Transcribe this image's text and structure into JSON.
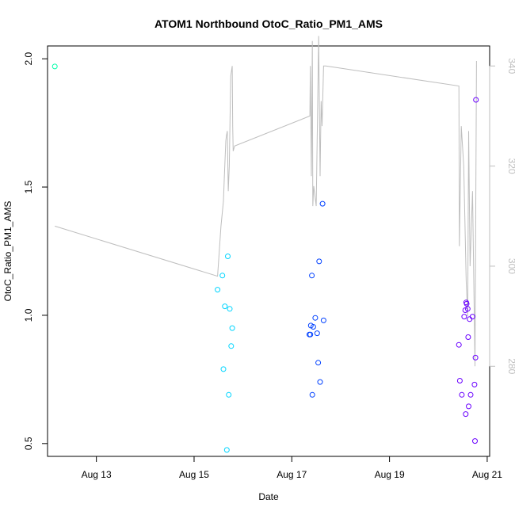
{
  "chart_data": {
    "type": "scatter",
    "title": "ATOM1 Northbound OtoC_Ratio_PM1_AMS",
    "xlabel": "Date",
    "ylabel": "OtoC_Ratio_PM1_AMS",
    "xlim": [
      12.0,
      21.05
    ],
    "ylim": [
      0.45,
      2.05
    ],
    "x_ticks": [
      {
        "value": 13,
        "label": "Aug 13"
      },
      {
        "value": 15,
        "label": "Aug 15"
      },
      {
        "value": 17,
        "label": "Aug 17"
      },
      {
        "value": 19,
        "label": "Aug 19"
      },
      {
        "value": 21,
        "label": "Aug 21"
      }
    ],
    "y_ticks": [
      {
        "value": 0.5,
        "label": "0.5"
      },
      {
        "value": 1.0,
        "label": "1.0"
      },
      {
        "value": 1.5,
        "label": "1.5"
      },
      {
        "value": 2.0,
        "label": "2.0"
      }
    ],
    "y2lim": [
      262,
      344
    ],
    "y2_ticks": [
      {
        "value": 280,
        "label": "280"
      },
      {
        "value": 300,
        "label": "300"
      },
      {
        "value": 320,
        "label": "320"
      },
      {
        "value": 340,
        "label": "340"
      }
    ],
    "secondary_line": {
      "color": "#bebebe",
      "x": [
        12.15,
        15.48,
        15.55,
        15.6,
        15.62,
        15.65,
        15.66,
        15.68,
        15.7,
        15.72,
        15.75,
        15.78,
        15.79,
        15.8,
        15.83,
        17.37,
        17.38,
        17.4,
        17.42,
        17.43,
        17.45,
        17.5,
        17.55,
        17.58,
        17.6,
        17.62,
        17.65,
        17.7,
        20.42,
        20.43,
        20.47,
        20.52,
        20.57,
        20.6,
        20.62,
        20.65,
        20.7,
        20.75,
        20.78
      ],
      "y": [
        308,
        298,
        308,
        313,
        318,
        325,
        326,
        327,
        315,
        320,
        338,
        340,
        328,
        323,
        324,
        330,
        340,
        318,
        345,
        312,
        316,
        312,
        346,
        318,
        333,
        328,
        340,
        340,
        336,
        304,
        328,
        320,
        297,
        290,
        327,
        300,
        315,
        280,
        341
      ]
    },
    "series": [
      {
        "name": "points",
        "points": [
          {
            "x": 12.15,
            "y": 1.97,
            "color": "#00ffaa"
          },
          {
            "x": 15.48,
            "y": 1.1,
            "color": "#00d5ff"
          },
          {
            "x": 15.58,
            "y": 1.155,
            "color": "#00d5ff"
          },
          {
            "x": 15.6,
            "y": 0.79,
            "color": "#00d5ff"
          },
          {
            "x": 15.63,
            "y": 1.035,
            "color": "#00d5ff"
          },
          {
            "x": 15.67,
            "y": 0.475,
            "color": "#00d5ff"
          },
          {
            "x": 15.69,
            "y": 1.23,
            "color": "#00d5ff"
          },
          {
            "x": 15.71,
            "y": 0.69,
            "color": "#00d5ff"
          },
          {
            "x": 15.73,
            "y": 1.025,
            "color": "#00d5ff"
          },
          {
            "x": 15.76,
            "y": 0.88,
            "color": "#00d5ff"
          },
          {
            "x": 15.78,
            "y": 0.95,
            "color": "#00d5ff"
          },
          {
            "x": 17.36,
            "y": 0.925,
            "color": "#0040ff"
          },
          {
            "x": 17.38,
            "y": 0.925,
            "color": "#0040ff"
          },
          {
            "x": 17.39,
            "y": 0.96,
            "color": "#0040ff"
          },
          {
            "x": 17.41,
            "y": 1.155,
            "color": "#0040ff"
          },
          {
            "x": 17.42,
            "y": 0.69,
            "color": "#0040ff"
          },
          {
            "x": 17.44,
            "y": 0.955,
            "color": "#0040ff"
          },
          {
            "x": 17.48,
            "y": 0.99,
            "color": "#0040ff"
          },
          {
            "x": 17.52,
            "y": 0.93,
            "color": "#0040ff"
          },
          {
            "x": 17.54,
            "y": 0.815,
            "color": "#0040ff"
          },
          {
            "x": 17.56,
            "y": 1.21,
            "color": "#0040ff"
          },
          {
            "x": 17.58,
            "y": 0.74,
            "color": "#0040ff"
          },
          {
            "x": 17.63,
            "y": 1.435,
            "color": "#0040ff"
          },
          {
            "x": 17.65,
            "y": 0.98,
            "color": "#0040ff"
          },
          {
            "x": 20.42,
            "y": 0.885,
            "color": "#6a00ff"
          },
          {
            "x": 20.44,
            "y": 0.745,
            "color": "#6a00ff"
          },
          {
            "x": 20.48,
            "y": 0.69,
            "color": "#6a00ff"
          },
          {
            "x": 20.53,
            "y": 0.995,
            "color": "#6a00ff"
          },
          {
            "x": 20.55,
            "y": 1.02,
            "color": "#6a00ff"
          },
          {
            "x": 20.56,
            "y": 0.615,
            "color": "#6a00ff"
          },
          {
            "x": 20.57,
            "y": 1.05,
            "color": "#6a00ff"
          },
          {
            "x": 20.58,
            "y": 1.045,
            "color": "#6a00ff"
          },
          {
            "x": 20.6,
            "y": 1.025,
            "color": "#6a00ff"
          },
          {
            "x": 20.61,
            "y": 0.915,
            "color": "#6a00ff"
          },
          {
            "x": 20.62,
            "y": 0.645,
            "color": "#6a00ff"
          },
          {
            "x": 20.64,
            "y": 0.985,
            "color": "#6a00ff"
          },
          {
            "x": 20.66,
            "y": 0.69,
            "color": "#6a00ff"
          },
          {
            "x": 20.7,
            "y": 0.995,
            "color": "#6a00ff"
          },
          {
            "x": 20.74,
            "y": 0.73,
            "color": "#6a00ff"
          },
          {
            "x": 20.75,
            "y": 0.51,
            "color": "#6a00ff"
          },
          {
            "x": 20.76,
            "y": 0.835,
            "color": "#6a00ff"
          },
          {
            "x": 20.77,
            "y": 1.84,
            "color": "#6a00ff"
          }
        ]
      }
    ]
  }
}
